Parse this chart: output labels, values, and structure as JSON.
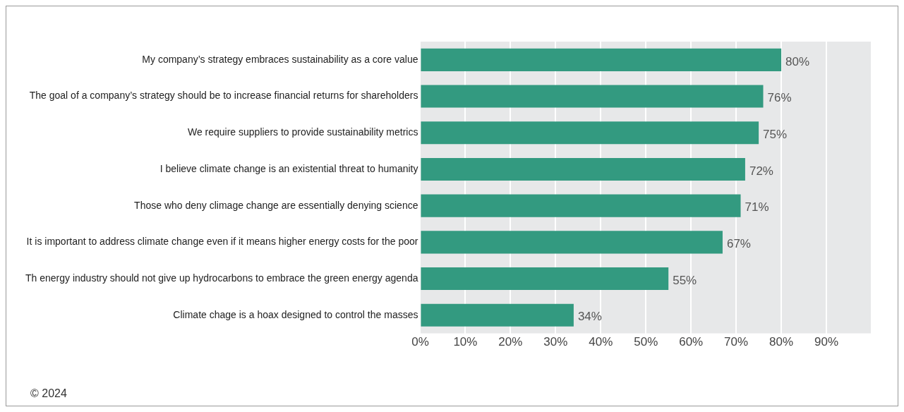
{
  "chart_data": {
    "type": "bar",
    "orientation": "horizontal",
    "categories": [
      "My company’s strategy embraces sustainability as a core value",
      "The goal of a company’s strategy should be to increase financial returns for shareholders",
      "We require suppliers to provide sustainability metrics",
      "I believe climate change is an existential threat to humanity",
      "Those who deny climage change are essentially denying science",
      "It is important to address climate change even if it means higher energy costs for the poor",
      "Th energy industry should not give up hydrocarbons to embrace the green energy agenda",
      "Climate chage is a hoax designed to control the masses"
    ],
    "values": [
      80,
      76,
      75,
      72,
      71,
      67,
      55,
      34
    ],
    "value_labels": [
      "80%",
      "76%",
      "75%",
      "72%",
      "71%",
      "67%",
      "55%",
      "34%"
    ],
    "color": "#339a80",
    "xlim": [
      0,
      100
    ],
    "xticks": [
      {
        "value": 0,
        "label": "0%"
      },
      {
        "value": 10,
        "label": "10%"
      },
      {
        "value": 20,
        "label": "20%"
      },
      {
        "value": 30,
        "label": "30%"
      },
      {
        "value": 40,
        "label": "40%"
      },
      {
        "value": 50,
        "label": "50%"
      },
      {
        "value": 60,
        "label": "60%"
      },
      {
        "value": 70,
        "label": "70%"
      },
      {
        "value": 80,
        "label": "80%"
      },
      {
        "value": 90,
        "label": "90%"
      },
      {
        "value": 100,
        "label": null
      }
    ],
    "grid": "x",
    "annotations": [
      "© 2024"
    ]
  }
}
